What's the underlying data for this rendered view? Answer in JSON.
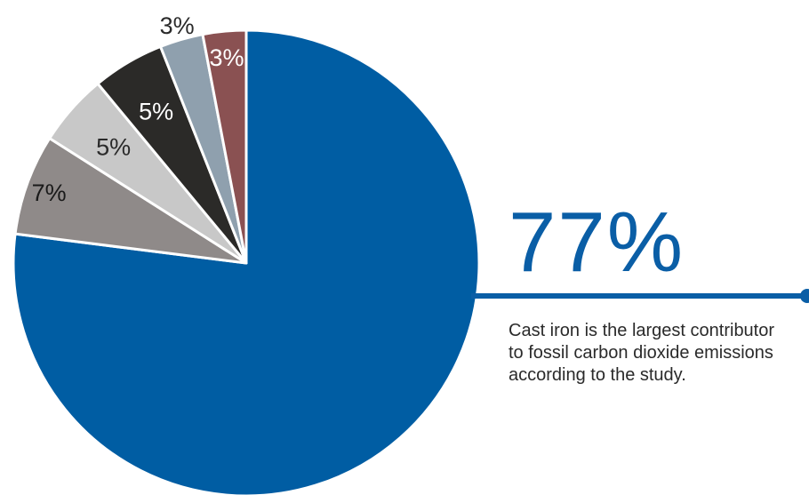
{
  "chart_data": {
    "type": "pie",
    "slices": [
      {
        "value": 77,
        "label": "77%",
        "color": "#005da3"
      },
      {
        "value": 7,
        "label": "7%",
        "color": "#8f8a89"
      },
      {
        "value": 5,
        "label": "5%",
        "color": "#c8c8c8"
      },
      {
        "value": 5,
        "label": "5%",
        "color": "#2b2a28"
      },
      {
        "value": 3,
        "label": "3%",
        "color": "#8fa0ae"
      },
      {
        "value": 3,
        "label": "3%",
        "color": "#8a5152"
      }
    ]
  },
  "callout": {
    "percent": "77%",
    "text": "Cast iron is the largest contributor to fossil carbon dioxide emissions according to the study."
  },
  "colors": {
    "accent": "#0a5ea6",
    "text": "#2a2a2a"
  }
}
